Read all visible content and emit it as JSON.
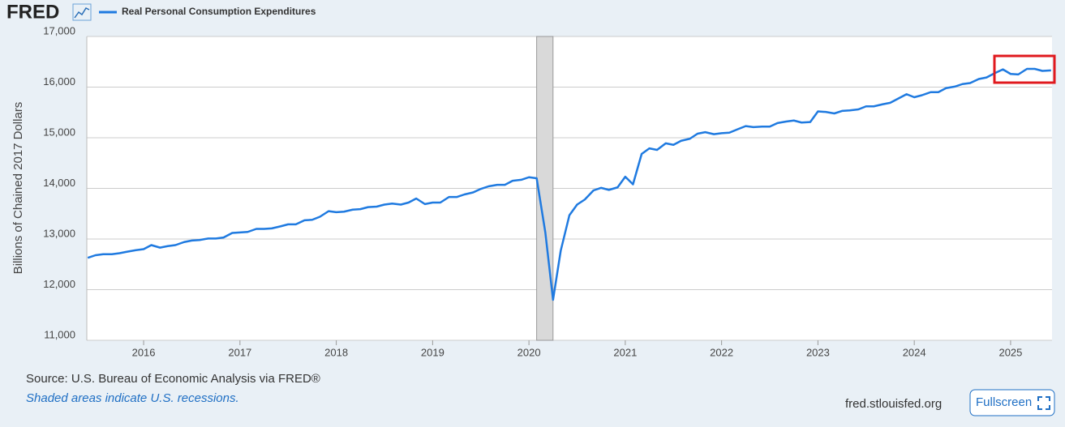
{
  "page": {
    "logo": "FRED",
    "source": "Source: U.S. Bureau of Economic Analysis via FRED®",
    "note": "Shaded areas indicate U.S. recessions.",
    "site": "fred.stlouisfed.org",
    "button": "Fullscreen"
  },
  "chart_data": {
    "type": "line",
    "y_label": "Billions of Chained 2017 Dollars",
    "grid": true,
    "xlim": [
      2015.41,
      2025.43
    ],
    "xticks": [
      2016,
      2017,
      2018,
      2019,
      2020,
      2021,
      2022,
      2023,
      2024,
      2025
    ],
    "ylim": [
      11000,
      17000
    ],
    "yticks": [
      {
        "value": 11000,
        "label": "11,000"
      },
      {
        "value": 12000,
        "label": "12,000"
      },
      {
        "value": 13000,
        "label": "13,000"
      },
      {
        "value": 14000,
        "label": "14,000"
      },
      {
        "value": 15000,
        "label": "15,000"
      },
      {
        "value": 16000,
        "label": "16,000"
      },
      {
        "value": 17000,
        "label": "17,000"
      }
    ],
    "recessions": [
      [
        2020.08,
        2020.25
      ]
    ],
    "x": [
      2015.42,
      2015.5,
      2015.58,
      2015.67,
      2015.75,
      2015.83,
      2015.92,
      2016,
      2016.08,
      2016.17,
      2016.25,
      2016.33,
      2016.42,
      2016.5,
      2016.58,
      2016.67,
      2016.75,
      2016.83,
      2016.92,
      2017,
      2017.08,
      2017.17,
      2017.25,
      2017.33,
      2017.42,
      2017.5,
      2017.58,
      2017.67,
      2017.75,
      2017.83,
      2017.92,
      2018,
      2018.08,
      2018.17,
      2018.25,
      2018.33,
      2018.42,
      2018.5,
      2018.58,
      2018.67,
      2018.75,
      2018.83,
      2018.92,
      2019,
      2019.08,
      2019.17,
      2019.25,
      2019.33,
      2019.42,
      2019.5,
      2019.58,
      2019.67,
      2019.75,
      2019.83,
      2019.92,
      2020,
      2020.08,
      2020.17,
      2020.25,
      2020.33,
      2020.42,
      2020.5,
      2020.58,
      2020.67,
      2020.75,
      2020.83,
      2020.92,
      2021,
      2021.08,
      2021.17,
      2021.25,
      2021.33,
      2021.42,
      2021.5,
      2021.58,
      2021.67,
      2021.75,
      2021.83,
      2021.92,
      2022,
      2022.08,
      2022.17,
      2022.25,
      2022.33,
      2022.42,
      2022.5,
      2022.58,
      2022.67,
      2022.75,
      2022.83,
      2022.92,
      2023,
      2023.08,
      2023.17,
      2023.25,
      2023.33,
      2023.42,
      2023.5,
      2023.58,
      2023.67,
      2023.75,
      2023.83,
      2023.92,
      2024,
      2024.08,
      2024.17,
      2024.25,
      2024.33,
      2024.42,
      2024.5,
      2024.58,
      2024.67,
      2024.75,
      2024.83,
      2024.92,
      2025,
      2025.08,
      2025.17,
      2025.25,
      2025.33,
      2025.42
    ],
    "series": [
      {
        "name": "Real Personal Consumption Expenditures",
        "color": "#1f7ae0",
        "values": [
          12630,
          12680,
          12700,
          12700,
          12720,
          12750,
          12780,
          12800,
          12880,
          12830,
          12860,
          12880,
          12940,
          12970,
          12980,
          13010,
          13010,
          13030,
          13120,
          13130,
          13140,
          13200,
          13200,
          13210,
          13250,
          13290,
          13290,
          13370,
          13380,
          13440,
          13550,
          13530,
          13540,
          13580,
          13590,
          13630,
          13640,
          13680,
          13700,
          13680,
          13720,
          13800,
          13690,
          13720,
          13720,
          13830,
          13830,
          13880,
          13920,
          13990,
          14040,
          14070,
          14070,
          14150,
          14170,
          14220,
          14200,
          13130,
          11800,
          12770,
          13470,
          13680,
          13780,
          13960,
          14010,
          13970,
          14020,
          14230,
          14080,
          14680,
          14790,
          14760,
          14890,
          14860,
          14940,
          14980,
          15080,
          15110,
          15070,
          15090,
          15100,
          15170,
          15230,
          15210,
          15220,
          15220,
          15290,
          15320,
          15340,
          15300,
          15310,
          15520,
          15510,
          15480,
          15530,
          15540,
          15560,
          15620,
          15620,
          15660,
          15690,
          15770,
          15860,
          15800,
          15840,
          15900,
          15900,
          15980,
          16010,
          16060,
          16080,
          16160,
          16190,
          16270,
          16350,
          16260,
          16250,
          16360,
          16360,
          16320,
          16330
        ]
      }
    ]
  }
}
